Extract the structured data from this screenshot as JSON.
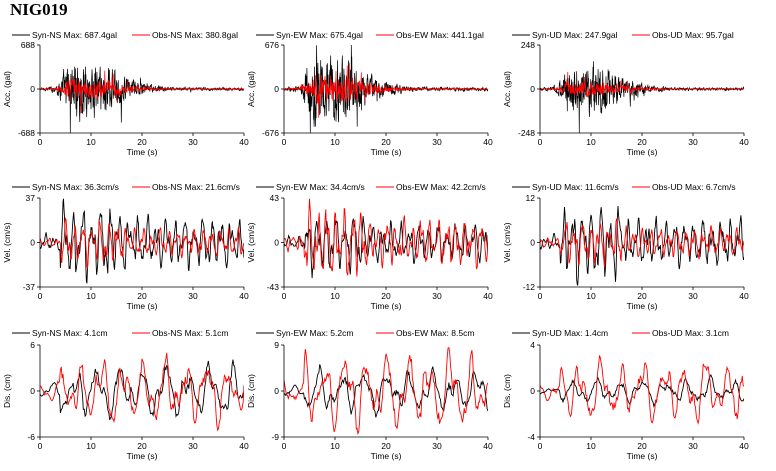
{
  "figure": {
    "title": "NIG019"
  },
  "colors": {
    "syn": "#000000",
    "obs": "#ff0000"
  },
  "chart_data": [
    {
      "type": "line",
      "row": 0,
      "col": 0,
      "legend": [
        "Syn-NS  Max: 687.4gal",
        "Obs-NS  Max: 380.8gal"
      ],
      "ylabel": "Acc. (gal)",
      "xlabel": "Time (s)",
      "ylim": [
        -688,
        688
      ],
      "yticks": [
        "688",
        "0",
        "-688"
      ],
      "xlim": [
        0,
        40
      ],
      "xticks": [
        "0",
        "10",
        "20",
        "30",
        "40"
      ],
      "kind": "acc",
      "series": [
        {
          "name": "Syn-NS",
          "max": 687.4
        },
        {
          "name": "Obs-NS",
          "max": 380.8
        }
      ]
    },
    {
      "type": "line",
      "row": 0,
      "col": 1,
      "legend": [
        "Syn-EW  Max: 675.4gal",
        "Obs-EW  Max: 441.1gal"
      ],
      "ylabel": "Acc. (gal)",
      "xlabel": "Time (s)",
      "ylim": [
        -676,
        676
      ],
      "yticks": [
        "676",
        "0",
        "-676"
      ],
      "xlim": [
        0,
        40
      ],
      "xticks": [
        "0",
        "10",
        "20",
        "30",
        "40"
      ],
      "kind": "acc",
      "series": [
        {
          "name": "Syn-EW",
          "max": 675.4
        },
        {
          "name": "Obs-EW",
          "max": 441.1
        }
      ]
    },
    {
      "type": "line",
      "row": 0,
      "col": 2,
      "legend": [
        "Syn-UD  Max: 247.9gal",
        "Obs-UD  Max: 95.7gal"
      ],
      "ylabel": "Acc. (gal)",
      "xlabel": "Time (s)",
      "ylim": [
        -248,
        248
      ],
      "yticks": [
        "248",
        "0",
        "-248"
      ],
      "xlim": [
        0,
        40
      ],
      "xticks": [
        "0",
        "10",
        "20",
        "30",
        "40"
      ],
      "kind": "acc",
      "series": [
        {
          "name": "Syn-UD",
          "max": 247.9
        },
        {
          "name": "Obs-UD",
          "max": 95.7
        }
      ]
    },
    {
      "type": "line",
      "row": 1,
      "col": 0,
      "legend": [
        "Syn-NS  Max: 36.3cm/s",
        "Obs-NS  Max: 21.6cm/s"
      ],
      "ylabel": "Vel. (cm/s)",
      "xlabel": "Time (s)",
      "ylim": [
        -37,
        37
      ],
      "yticks": [
        "37",
        "0",
        "-37"
      ],
      "xlim": [
        0,
        40
      ],
      "xticks": [
        "0",
        "10",
        "20",
        "30",
        "40"
      ],
      "kind": "vel",
      "series": [
        {
          "name": "Syn-NS",
          "max": 36.3
        },
        {
          "name": "Obs-NS",
          "max": 21.6
        }
      ]
    },
    {
      "type": "line",
      "row": 1,
      "col": 1,
      "legend": [
        "Syn-EW  Max: 34.4cm/s",
        "Obs-EW  Max: 42.2cm/s"
      ],
      "ylabel": "Vel. (cm/s)",
      "xlabel": "Time (s)",
      "ylim": [
        -43,
        43
      ],
      "yticks": [
        "43",
        "0",
        "-43"
      ],
      "xlim": [
        0,
        40
      ],
      "xticks": [
        "0",
        "10",
        "20",
        "30",
        "40"
      ],
      "kind": "vel",
      "series": [
        {
          "name": "Syn-EW",
          "max": 34.4
        },
        {
          "name": "Obs-EW",
          "max": 42.2
        }
      ]
    },
    {
      "type": "line",
      "row": 1,
      "col": 2,
      "legend": [
        "Syn-UD  Max: 11.6cm/s",
        "Obs-UD  Max: 6.7cm/s"
      ],
      "ylabel": "Vel. (cm/s)",
      "xlabel": "Time (s)",
      "ylim": [
        -12,
        12
      ],
      "yticks": [
        "12",
        "0",
        "-12"
      ],
      "xlim": [
        0,
        40
      ],
      "xticks": [
        "0",
        "10",
        "20",
        "30",
        "40"
      ],
      "kind": "vel",
      "series": [
        {
          "name": "Syn-UD",
          "max": 11.6
        },
        {
          "name": "Obs-UD",
          "max": 6.7
        }
      ]
    },
    {
      "type": "line",
      "row": 2,
      "col": 0,
      "legend": [
        "Syn-NS  Max: 4.1cm",
        "Obs-NS  Max: 5.1cm"
      ],
      "ylabel": "Dis. (cm)",
      "xlabel": "Time (s)",
      "ylim": [
        -6,
        6
      ],
      "yticks": [
        "6",
        "0",
        "-6"
      ],
      "xlim": [
        0,
        40
      ],
      "xticks": [
        "0",
        "10",
        "20",
        "30",
        "40"
      ],
      "kind": "dis",
      "series": [
        {
          "name": "Syn-NS",
          "max": 4.1
        },
        {
          "name": "Obs-NS",
          "max": 5.1
        }
      ]
    },
    {
      "type": "line",
      "row": 2,
      "col": 1,
      "legend": [
        "Syn-EW  Max: 5.2cm",
        "Obs-EW  Max: 8.5cm"
      ],
      "ylabel": "Dis. (cm)",
      "xlabel": "Time (s)",
      "ylim": [
        -9,
        9
      ],
      "yticks": [
        "9",
        "0",
        "-9"
      ],
      "xlim": [
        0,
        40
      ],
      "xticks": [
        "0",
        "10",
        "20",
        "30",
        "40"
      ],
      "kind": "dis",
      "series": [
        {
          "name": "Syn-EW",
          "max": 5.2
        },
        {
          "name": "Obs-EW",
          "max": 8.5
        }
      ]
    },
    {
      "type": "line",
      "row": 2,
      "col": 2,
      "legend": [
        "Syn-UD  Max: 1.4cm",
        "Obs-UD  Max: 3.1cm"
      ],
      "ylabel": "Dis. (cm)",
      "xlabel": "Time (s)",
      "ylim": [
        -4,
        4
      ],
      "yticks": [
        "4",
        "0",
        "-4"
      ],
      "xlim": [
        0,
        40
      ],
      "xticks": [
        "0",
        "10",
        "20",
        "30",
        "40"
      ],
      "kind": "dis",
      "series": [
        {
          "name": "Syn-UD",
          "max": 1.4
        },
        {
          "name": "Obs-UD",
          "max": 3.1
        }
      ]
    }
  ]
}
